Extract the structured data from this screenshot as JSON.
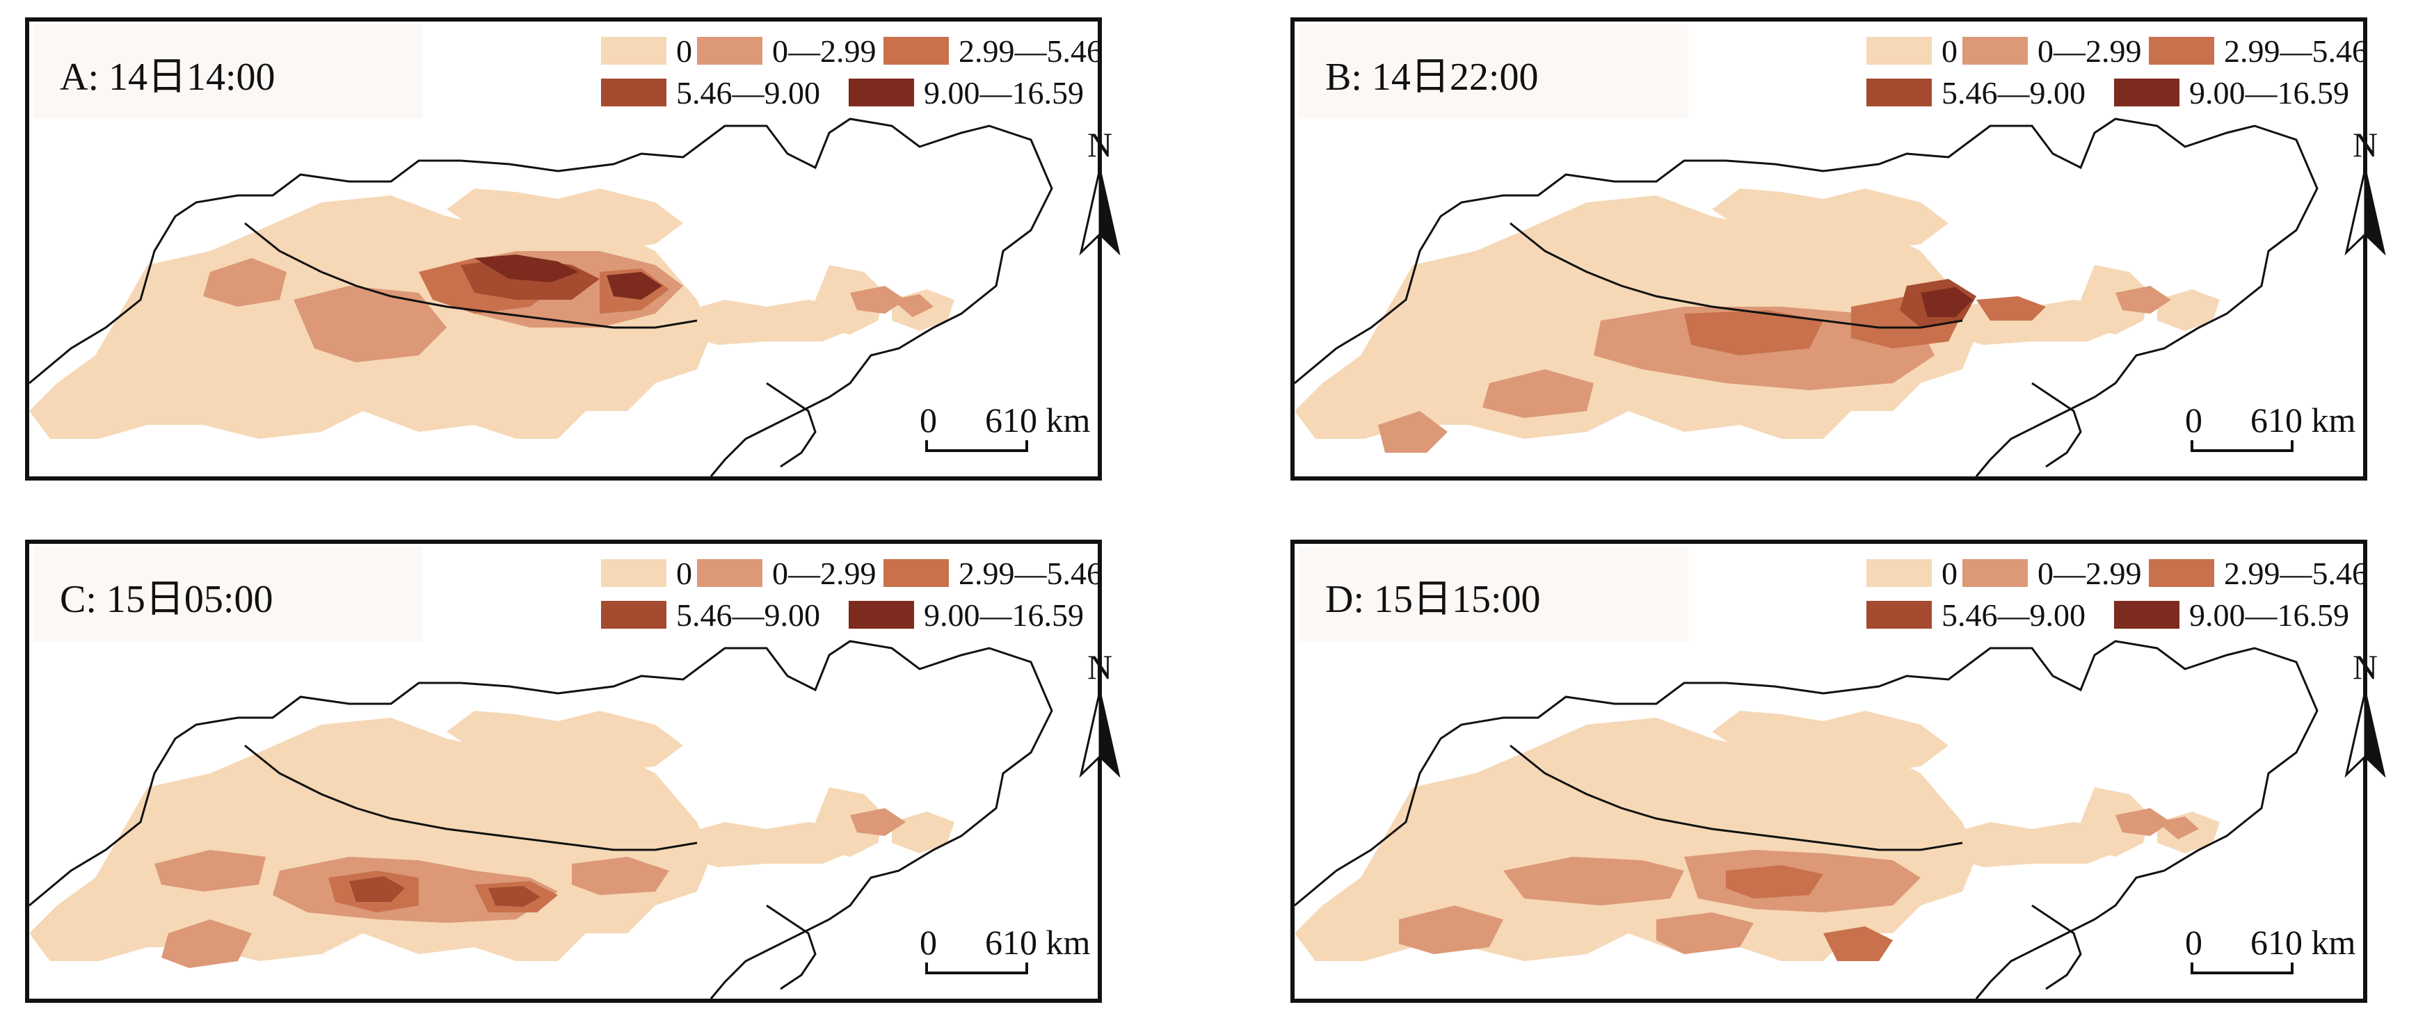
{
  "colors": {
    "class_0": "#f6d8b6",
    "class_1": "#dc9877",
    "class_2": "#c8714c",
    "class_3": "#a44b30",
    "class_4": "#7d2b1e",
    "boundary": "#111111"
  },
  "legend": [
    {
      "label": "0",
      "color": "#f6d8b6"
    },
    {
      "label": "0—2.99",
      "color": "#dc9877"
    },
    {
      "label": "2.99—5.46",
      "color": "#c8714c"
    },
    {
      "label": "5.46—9.00",
      "color": "#a44b30"
    },
    {
      "label": "9.00—16.59",
      "color": "#7d2b1e"
    }
  ],
  "north_label": "N",
  "north_icon": "north-arrow-icon",
  "scale": {
    "zero": "0",
    "distance": "610 km"
  },
  "panels": [
    {
      "id": "a",
      "title": "A: 14日14:00"
    },
    {
      "id": "b",
      "title": "B: 14日22:00"
    },
    {
      "id": "c",
      "title": "C: 15日05:00"
    },
    {
      "id": "d",
      "title": "D: 15日15:00"
    }
  ]
}
